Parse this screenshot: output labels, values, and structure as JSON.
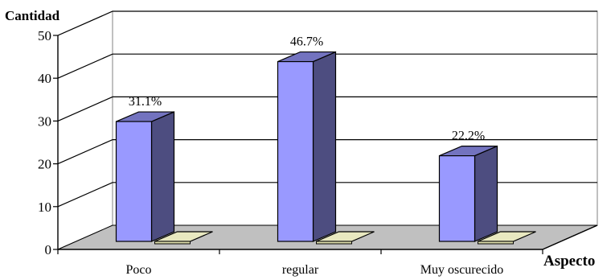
{
  "chart_data": {
    "type": "bar",
    "title": "",
    "ylabel": "Cantidad",
    "xlabel": "Aspecto",
    "ylim": [
      0,
      50
    ],
    "yticks": [
      0,
      10,
      20,
      30,
      40,
      50
    ],
    "grid": true,
    "style": "3d",
    "categories": [
      "Poco",
      "regular",
      "Muy oscurecido"
    ],
    "series": [
      {
        "values": [
          28,
          42,
          20
        ],
        "data_labels": [
          "31.1%",
          "46.7%",
          "22.2%"
        ],
        "color_front": "#9999FF",
        "color_side": "#4D4D80",
        "color_top": "#7373BF"
      },
      {
        "values": [
          0,
          0,
          0
        ],
        "color_front": "#DDDDAA",
        "color_side": "#99997A",
        "color_top": "#E8E8C0"
      }
    ],
    "colors": {
      "floor": "#C0C0C0",
      "gridline": "#000000",
      "axis": "#000000"
    }
  }
}
